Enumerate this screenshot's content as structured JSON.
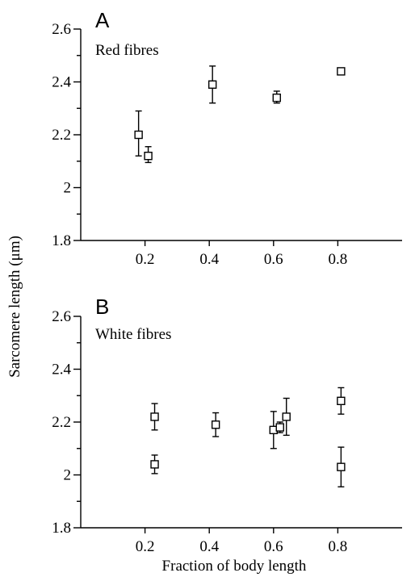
{
  "figure": {
    "ylabel": "Sarcomere length (μm)",
    "xlabel": "Fraction of body length"
  },
  "chart_data": [
    {
      "type": "scatter",
      "panel": "A",
      "subtitle": "Red fibres",
      "xlim": [
        0.0,
        1.0
      ],
      "ylim": [
        1.8,
        2.6
      ],
      "x_ticks": [
        "0.2",
        "0.4",
        "0.6",
        "0.8"
      ],
      "y_ticks": [
        "1.8",
        "2",
        "2.2",
        "2.4",
        "2.6"
      ],
      "points": [
        {
          "x": 0.18,
          "y": 2.2,
          "err_low": 0.08,
          "err_high": 0.09
        },
        {
          "x": 0.21,
          "y": 2.12,
          "err_low": 0.025,
          "err_high": 0.035
        },
        {
          "x": 0.41,
          "y": 2.39,
          "err_low": 0.07,
          "err_high": 0.07
        },
        {
          "x": 0.61,
          "y": 2.34,
          "err_low": 0.02,
          "err_high": 0.025
        },
        {
          "x": 0.81,
          "y": 2.44,
          "err_low": 0.0,
          "err_high": 0.0
        }
      ]
    },
    {
      "type": "scatter",
      "panel": "B",
      "subtitle": "White fibres",
      "xlim": [
        0.0,
        1.0
      ],
      "ylim": [
        1.8,
        2.6
      ],
      "x_ticks": [
        "0.2",
        "0.4",
        "0.6",
        "0.8"
      ],
      "y_ticks": [
        "1.8",
        "2",
        "2.2",
        "2.4",
        "2.6"
      ],
      "points": [
        {
          "x": 0.23,
          "y": 2.22,
          "err_low": 0.05,
          "err_high": 0.05
        },
        {
          "x": 0.23,
          "y": 2.04,
          "err_low": 0.035,
          "err_high": 0.035
        },
        {
          "x": 0.42,
          "y": 2.19,
          "err_low": 0.045,
          "err_high": 0.045
        },
        {
          "x": 0.6,
          "y": 2.17,
          "err_low": 0.07,
          "err_high": 0.07
        },
        {
          "x": 0.62,
          "y": 2.18,
          "err_low": 0.02,
          "err_high": 0.02
        },
        {
          "x": 0.64,
          "y": 2.22,
          "err_low": 0.07,
          "err_high": 0.07
        },
        {
          "x": 0.81,
          "y": 2.28,
          "err_low": 0.05,
          "err_high": 0.05
        },
        {
          "x": 0.81,
          "y": 2.03,
          "err_low": 0.075,
          "err_high": 0.075
        }
      ]
    }
  ]
}
